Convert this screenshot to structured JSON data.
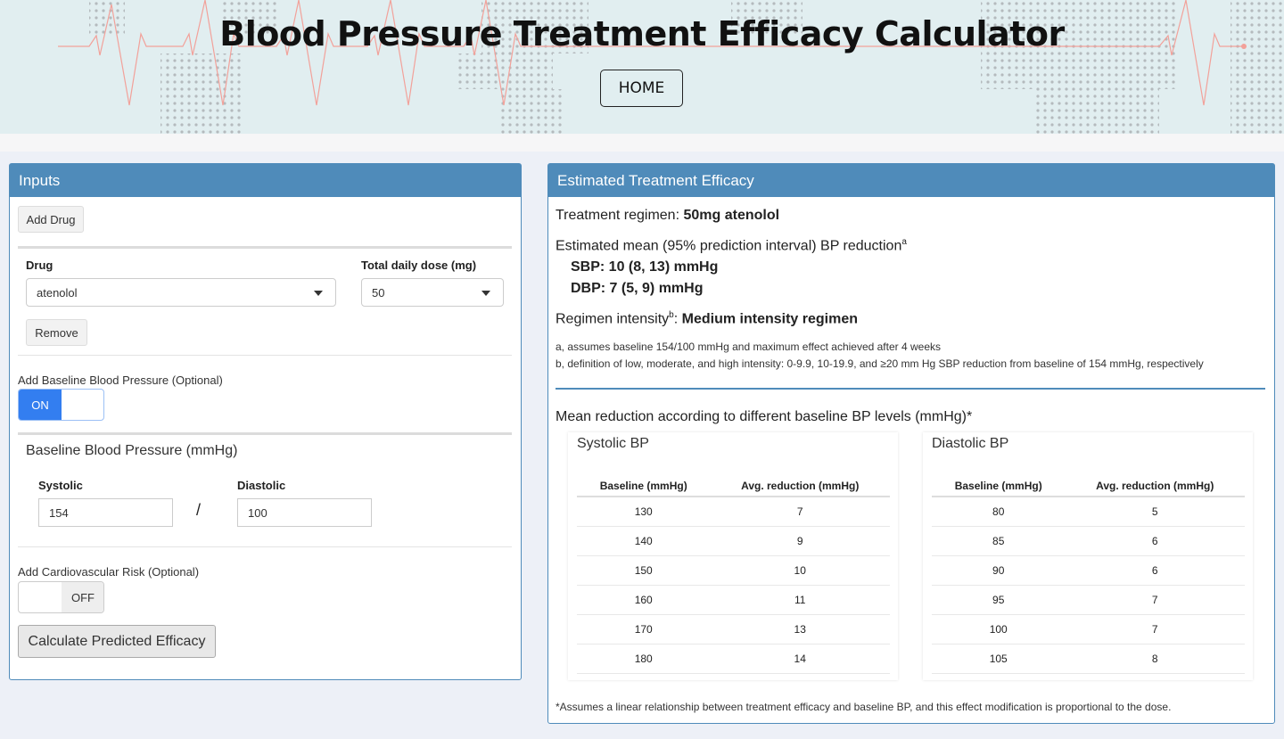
{
  "header": {
    "title": "Blood Pressure Treatment Efficacy Calculator",
    "home_label": "HOME"
  },
  "colors": {
    "panel_header": "#4f8bba",
    "toggle_on": "#337ef0",
    "ecg_line": "#f2a19a"
  },
  "inputs": {
    "title": "Inputs",
    "add_drug_label": "Add Drug",
    "drug_label": "Drug",
    "drug_value": "atenolol",
    "dose_label": "Total daily dose (mg)",
    "dose_value": "50",
    "remove_label": "Remove",
    "baseline_toggle_label": "Add Baseline Blood Pressure (Optional)",
    "baseline_toggle_state": "ON",
    "baseline_title": "Baseline Blood Pressure (mmHg)",
    "systolic_label": "Systolic",
    "systolic_value": "154",
    "separator": "/",
    "diastolic_label": "Diastolic",
    "diastolic_value": "100",
    "cv_toggle_label": "Add Cardiovascular Risk (Optional)",
    "cv_toggle_state": "OFF",
    "calculate_label": "Calculate Predicted Efficacy"
  },
  "results": {
    "title": "Estimated Treatment Efficacy",
    "regimen_prefix": "Treatment regimen: ",
    "regimen_value": "50mg atenolol",
    "reduction_heading": "Estimated mean (95% prediction interval) BP reduction",
    "sup_a": "a",
    "sbp": "SBP: 10 (8, 13) mmHg",
    "dbp": "DBP: 7 (5, 9) mmHg",
    "intensity_prefix": "Regimen intensity",
    "sup_b": "b",
    "intensity_colon": ": ",
    "intensity_value": "Medium intensity regimen",
    "note_a": "a, assumes baseline 154/100 mmHg and maximum effect achieved after 4 weeks",
    "note_b": "b, definition of low, moderate, and high intensity: 0-9.9, 10-19.9, and ≥20 mm Hg SBP reduction from baseline of 154 mmHg, respectively",
    "table_heading": "Mean reduction according to different baseline BP levels (mmHg)*",
    "systolic": {
      "title": "Systolic BP",
      "headers": [
        "Baseline (mmHg)",
        "Avg. reduction (mmHg)"
      ],
      "rows": [
        [
          "130",
          "7"
        ],
        [
          "140",
          "9"
        ],
        [
          "150",
          "10"
        ],
        [
          "160",
          "11"
        ],
        [
          "170",
          "13"
        ],
        [
          "180",
          "14"
        ]
      ]
    },
    "diastolic": {
      "title": "Diastolic BP",
      "headers": [
        "Baseline (mmHg)",
        "Avg. reduction (mmHg)"
      ],
      "rows": [
        [
          "80",
          "5"
        ],
        [
          "85",
          "6"
        ],
        [
          "90",
          "6"
        ],
        [
          "95",
          "7"
        ],
        [
          "100",
          "7"
        ],
        [
          "105",
          "8"
        ]
      ]
    },
    "footnote": "*Assumes a linear relationship between treatment efficacy and baseline BP, and this effect modification is proportional to the dose."
  }
}
